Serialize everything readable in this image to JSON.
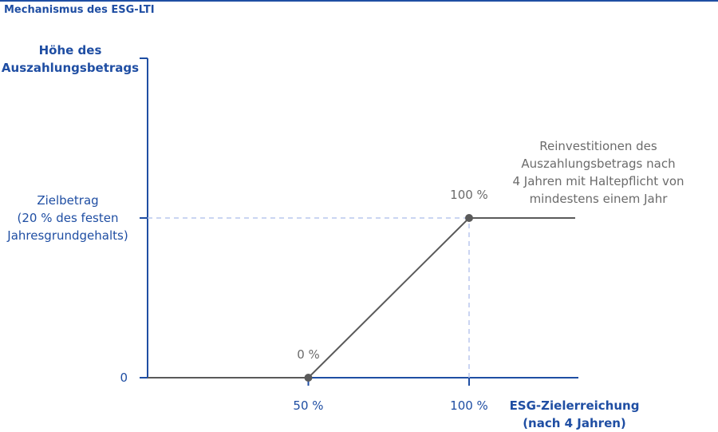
{
  "chart_data": {
    "type": "line",
    "title": "Mechanismus des ESG-LTI",
    "y_label": "Höhe des\nAuszahlungsbetrags",
    "x_label": "ESG-Zielerreichung\n(nach 4 Jahren)",
    "annotation": "Reinvestitionen des\nAuszahlungsbetrags nach\n4 Jahren mit Haltepflicht von\nmindestens einem Jahr",
    "x": [
      0,
      50,
      100,
      133
    ],
    "values": [
      0,
      0,
      100,
      100
    ],
    "value_labels": [
      null,
      "0 %",
      "100 %",
      null
    ],
    "color": "#5a5a5a",
    "axis_color": "#1f4ea3",
    "xlim": [
      0,
      134
    ],
    "ylim": [
      0,
      200
    ],
    "xticks": [
      {
        "value": 50,
        "label": "50 %"
      },
      {
        "value": 100,
        "label": "100 %"
      }
    ],
    "yticks": [
      0,
      {
        "value": 100,
        "label": "Zielbetrag\n(20 % des festen\nJahresgrundgehalts)"
      }
    ]
  }
}
